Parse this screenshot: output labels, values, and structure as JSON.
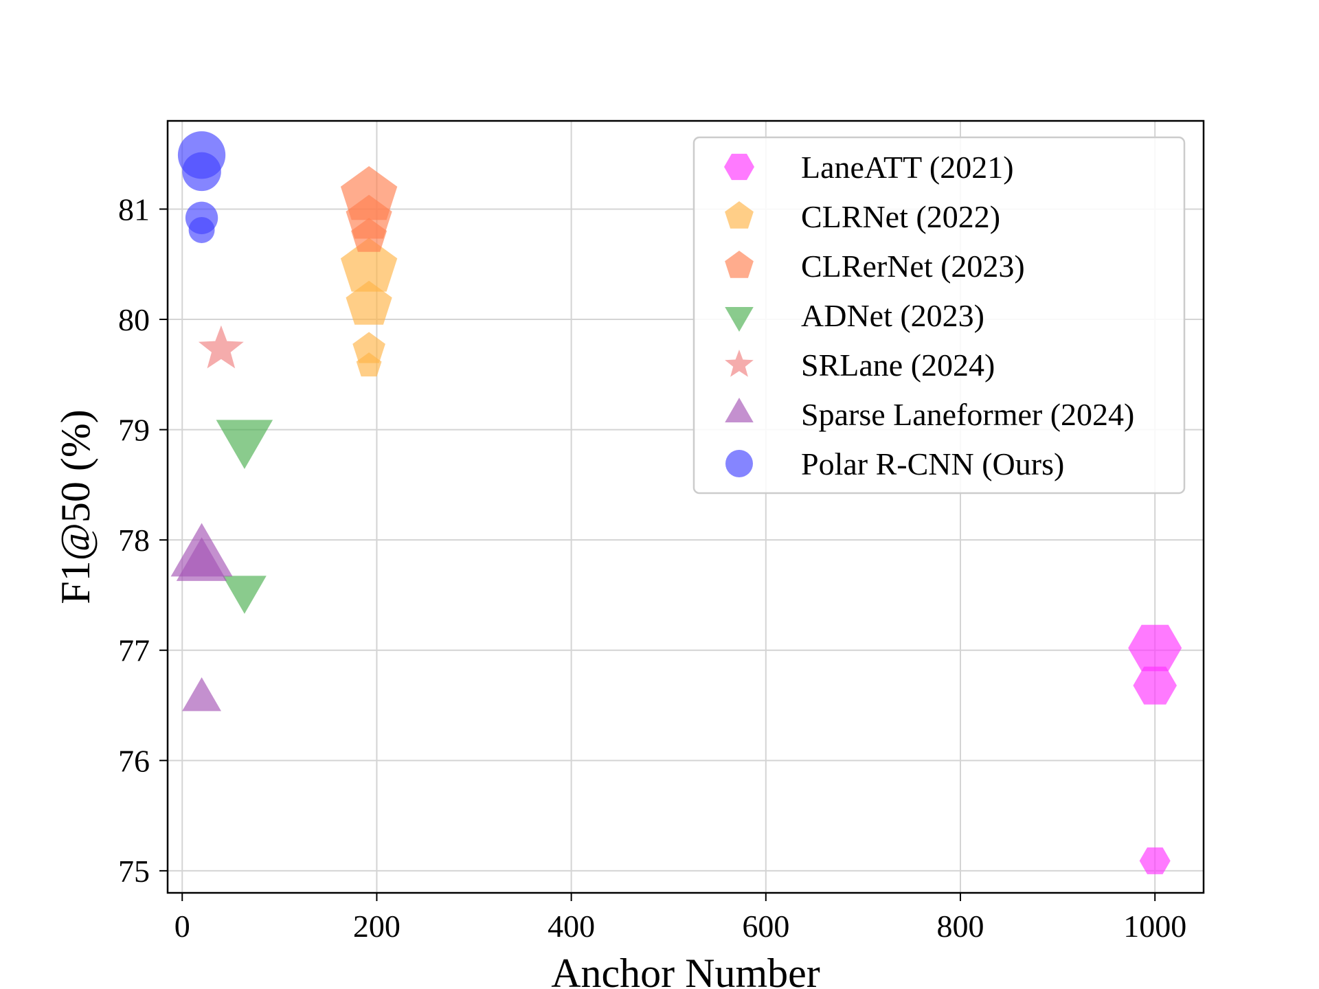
{
  "chart_data": {
    "type": "scatter",
    "xlabel": "Anchor Number",
    "ylabel": "F1@50 (%)",
    "xlim": [
      -15,
      1050
    ],
    "ylim": [
      74.8,
      81.8
    ],
    "xticks": [
      0,
      200,
      400,
      600,
      800,
      1000
    ],
    "yticks": [
      75,
      76,
      77,
      78,
      79,
      80,
      81
    ],
    "grid": true,
    "legend_position": "top-right",
    "series": [
      {
        "name": "LaneATT (2021)",
        "marker": "hexagon",
        "color": "#ff33ff",
        "points": [
          {
            "x": 1000,
            "y": 77.02,
            "size": 3
          },
          {
            "x": 1000,
            "y": 76.68,
            "size": 2
          },
          {
            "x": 1000,
            "y": 75.09,
            "size": 1
          }
        ]
      },
      {
        "name": "CLRNet (2022)",
        "marker": "pentagon",
        "color": "#ffb347",
        "points": [
          {
            "x": 192,
            "y": 80.47,
            "size": 3
          },
          {
            "x": 192,
            "y": 80.13,
            "size": 2
          },
          {
            "x": 192,
            "y": 79.73,
            "size": 1
          },
          {
            "x": 192,
            "y": 79.58,
            "size": 0.6
          }
        ]
      },
      {
        "name": "CLRerNet (2023)",
        "marker": "pentagon",
        "color": "#ff7f50",
        "points": [
          {
            "x": 192,
            "y": 81.12,
            "size": 3
          },
          {
            "x": 192,
            "y": 80.91,
            "size": 2
          },
          {
            "x": 192,
            "y": 80.75,
            "size": 1.2
          }
        ]
      },
      {
        "name": "ADNet (2023)",
        "marker": "triangle-down",
        "color": "#4caf50",
        "points": [
          {
            "x": 64,
            "y": 78.94,
            "size": 3
          },
          {
            "x": 64,
            "y": 77.56,
            "size": 1.8
          }
        ]
      },
      {
        "name": "SRLane (2024)",
        "marker": "star",
        "color": "#f08080",
        "points": [
          {
            "x": 40,
            "y": 79.73,
            "size": 3
          }
        ]
      },
      {
        "name": "Sparse Laneformer (2024)",
        "marker": "triangle-up",
        "color": "#a555b5",
        "points": [
          {
            "x": 20,
            "y": 77.83,
            "size": 3
          },
          {
            "x": 20,
            "y": 77.76,
            "size": 2
          },
          {
            "x": 20,
            "y": 76.55,
            "size": 1.2
          }
        ]
      },
      {
        "name": "Polar R-CNN (Ours)",
        "marker": "circle",
        "color": "#4444ff",
        "points": [
          {
            "x": 20,
            "y": 81.49,
            "size": 3
          },
          {
            "x": 20,
            "y": 81.34,
            "size": 2
          },
          {
            "x": 20,
            "y": 80.92,
            "size": 1.4
          },
          {
            "x": 20,
            "y": 80.81,
            "size": 0.9
          }
        ]
      }
    ]
  }
}
